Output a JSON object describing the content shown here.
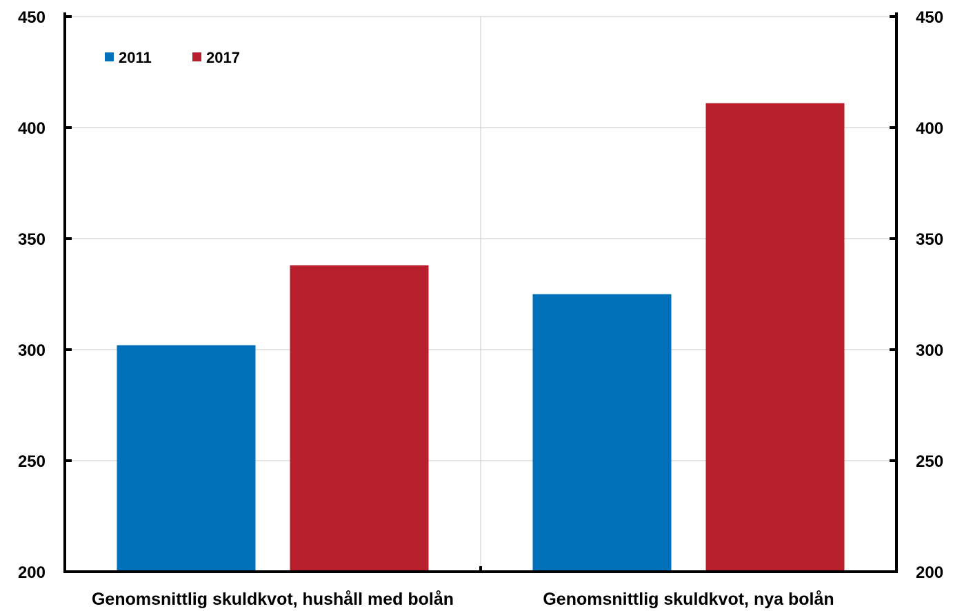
{
  "chart_data": {
    "type": "bar",
    "title": "",
    "xlabel": "",
    "ylabel": "",
    "categories": [
      "Genomsnittlig skuldkvot, hushåll med bolån",
      "Genomsnittlig skuldkvot, nya bolån"
    ],
    "series": [
      {
        "name": "2011",
        "color": "#0070b8",
        "values": [
          302,
          325
        ]
      },
      {
        "name": "2017",
        "color": "#b81f2c",
        "values": [
          338,
          411
        ]
      }
    ],
    "ylim": [
      200,
      450
    ],
    "yticks": [
      200,
      250,
      300,
      350,
      400,
      450
    ],
    "y_axis_left": true,
    "y_axis_right": true,
    "grid": true,
    "legend": "top-left"
  }
}
